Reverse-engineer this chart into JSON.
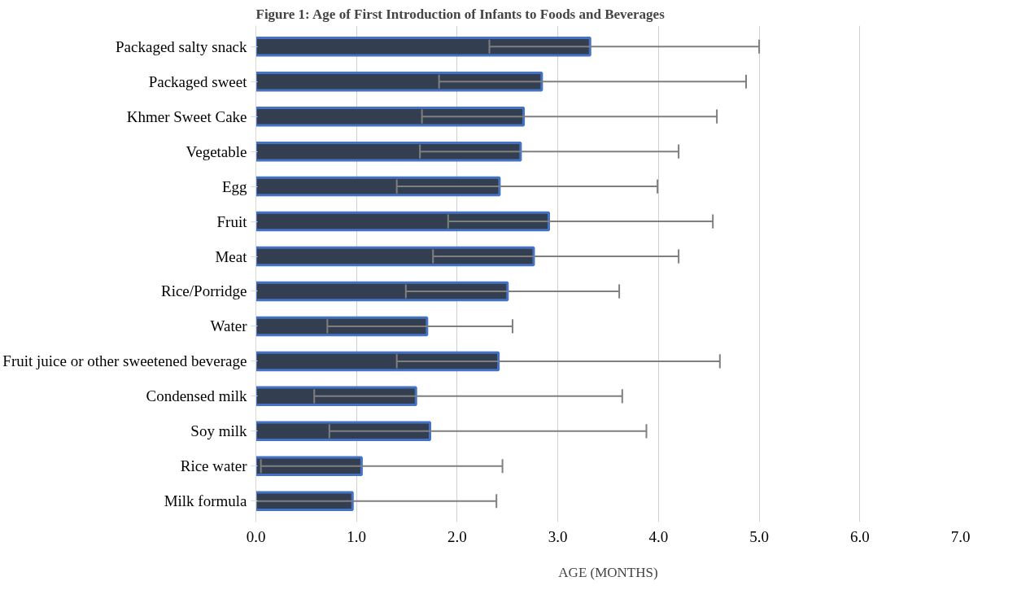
{
  "chart_data": {
    "type": "bar",
    "orientation": "horizontal",
    "title": "Figure 1: Age of First Introduction of Infants to Foods and Beverages",
    "xlabel": "AGE (MONTHS)",
    "categories": [
      "Packaged salty snack",
      "Packaged sweet",
      "Khmer Sweet Cake",
      "Vegetable",
      "Egg",
      "Fruit",
      "Meat",
      "Rice/Porridge",
      "Water",
      "Fruit juice or other sweetened beverage",
      "Condensed milk",
      "Soy milk",
      "Rice water",
      "Milk formula"
    ],
    "values": [
      3.32,
      2.84,
      2.66,
      2.63,
      2.42,
      2.91,
      2.76,
      2.5,
      1.7,
      2.41,
      1.59,
      1.73,
      1.05,
      0.96
    ],
    "errors": [
      [
        2.32,
        5.0
      ],
      [
        1.82,
        4.87
      ],
      [
        1.65,
        4.58
      ],
      [
        1.63,
        4.2
      ],
      [
        1.4,
        3.99
      ],
      [
        1.91,
        4.54
      ],
      [
        1.76,
        4.2
      ],
      [
        1.49,
        3.61
      ],
      [
        0.71,
        2.55
      ],
      [
        1.4,
        4.61
      ],
      [
        0.58,
        3.64
      ],
      [
        0.73,
        3.88
      ],
      [
        0.05,
        2.45
      ],
      [
        0.0,
        2.39
      ]
    ],
    "color": "#333f50",
    "xlim": [
      0,
      7
    ],
    "xticks": [
      {
        "value": 0,
        "label": "0.0"
      },
      {
        "value": 1,
        "label": "1.0"
      },
      {
        "value": 2,
        "label": "2.0"
      },
      {
        "value": 3,
        "label": "3.0"
      },
      {
        "value": 4,
        "label": "4.0"
      },
      {
        "value": 5,
        "label": "5.0"
      },
      {
        "value": 6,
        "label": "6.0"
      },
      {
        "value": 7,
        "label": "7.0"
      }
    ],
    "grid": "x"
  }
}
